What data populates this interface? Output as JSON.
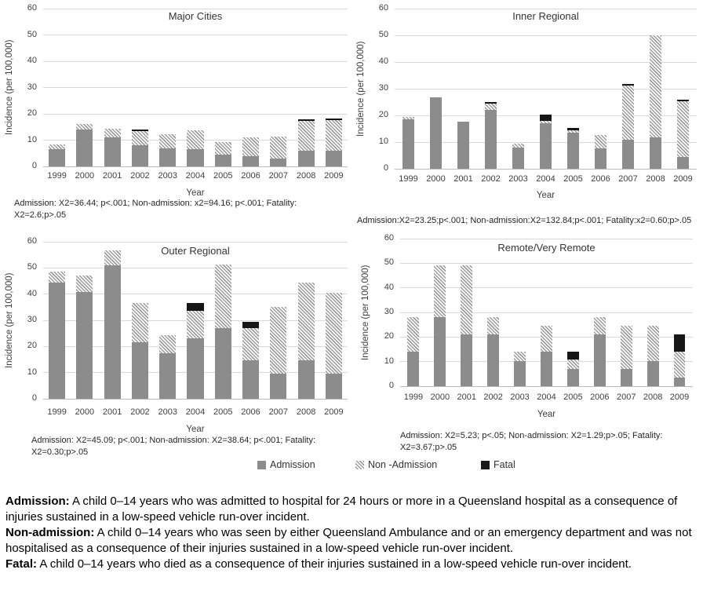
{
  "page": {
    "legend": [
      {
        "label": "Admission",
        "swatch": "solid-gray",
        "color": "#8c8c8c"
      },
      {
        "label": "Non -Admission",
        "swatch": "diagonal-hatch",
        "color": "#9c9c9c"
      },
      {
        "label": "Fatal",
        "swatch": "solid-black",
        "color": "#1a1a1a"
      }
    ],
    "definitions": [
      {
        "term": "Admission:",
        "text": " A child 0–14 years who was admitted to hospital for 24 hours or more in a Queensland hospital as a consequence of injuries sustained in a low-speed vehicle run-over incident."
      },
      {
        "term": "Non-admission:",
        "text": " A child 0–14 years who was seen by either Queensland Ambulance and or an emergency department and was not hospitalised as a consequence of their injuries sustained in a low-speed vehicle run-over incident."
      },
      {
        "term": "Fatal:",
        "text": " A child 0–14 years who died as a consequence of their injuries sustained in a low-speed vehicle run-over incident."
      }
    ]
  },
  "chart_data": [
    {
      "type": "bar",
      "stacked": true,
      "title": "Major Cities",
      "xlabel": "Year",
      "ylabel": "Incidence (per 100,000)",
      "ylim": [
        0,
        60
      ],
      "yticks": [
        0,
        10,
        20,
        30,
        40,
        50,
        60
      ],
      "grid": "horizontal",
      "legend_position": "shared-bottom",
      "categories": [
        "1999",
        "2000",
        "2001",
        "2002",
        "2003",
        "2004",
        "2005",
        "2006",
        "2007",
        "2008",
        "2009"
      ],
      "series": [
        {
          "name": "Admission",
          "values": [
            6.5,
            14,
            11,
            8,
            7,
            6.7,
            4.5,
            4,
            3,
            6,
            6
          ]
        },
        {
          "name": "Non-Admission",
          "values": [
            2,
            2,
            3.3,
            5.4,
            5.2,
            7,
            4.7,
            7,
            8.3,
            11.4,
            11.7
          ]
        },
        {
          "name": "Fatal",
          "values": [
            0,
            0,
            0,
            0.4,
            0,
            0,
            0,
            0,
            0,
            0.4,
            0.4
          ]
        }
      ],
      "stats_note": "Admission:  X2=36.44; p<.001; Non-admission: x2=94.16; p<.001; Fatality: X2=2.6;p>.05"
    },
    {
      "type": "bar",
      "stacked": true,
      "title": "Inner Regional",
      "xlabel": "Year",
      "ylabel": "Incidence (per 100,000)",
      "ylim": [
        0,
        60
      ],
      "yticks": [
        0,
        10,
        20,
        30,
        40,
        50,
        60
      ],
      "grid": "horizontal",
      "legend_position": "shared-bottom",
      "categories": [
        "1999",
        "2000",
        "2001",
        "2002",
        "2003",
        "2004",
        "2005",
        "2006",
        "2007",
        "2008",
        "2009"
      ],
      "series": [
        {
          "name": "Admission",
          "values": [
            18.5,
            26.8,
            17.6,
            22,
            7.8,
            17,
            13.5,
            7.7,
            11,
            11.8,
            4.3
          ]
        },
        {
          "name": "Non-Admission",
          "values": [
            0.8,
            0,
            0,
            2.3,
            1.5,
            0.8,
            0.9,
            5,
            20.2,
            38.2,
            20.9
          ]
        },
        {
          "name": "Fatal",
          "values": [
            0,
            0,
            0,
            0.7,
            0,
            2.4,
            0.8,
            0,
            0.6,
            0,
            0.8
          ]
        }
      ],
      "stats_note": "Admission:X2=23.25;p<.001; Non-admission:X2=132.84;p<.001; Fatality:x2=0.60;p>.05"
    },
    {
      "type": "bar",
      "stacked": true,
      "title": "Outer Regional",
      "xlabel": "Year",
      "ylabel": "Incidence (per 100,000)",
      "ylim": [
        0,
        60
      ],
      "yticks": [
        0,
        10,
        20,
        30,
        40,
        50,
        60
      ],
      "grid": "horizontal",
      "legend_position": "shared-bottom",
      "categories": [
        "1999",
        "2000",
        "2001",
        "2002",
        "2003",
        "2004",
        "2005",
        "2006",
        "2007",
        "2008",
        "2009"
      ],
      "series": [
        {
          "name": "Admission",
          "values": [
            44.5,
            40.7,
            51,
            21.7,
            17.5,
            23,
            27,
            14.8,
            9.5,
            14.8,
            9.5
          ]
        },
        {
          "name": "Non-Admission",
          "values": [
            4.2,
            6.5,
            5.7,
            14.8,
            6.9,
            10.5,
            24.3,
            12.2,
            25.7,
            29.7,
            31
          ]
        },
        {
          "name": "Fatal",
          "values": [
            0,
            0,
            0,
            0,
            0,
            3,
            0,
            2.5,
            0,
            0,
            0
          ]
        }
      ],
      "stats_note": "Admission:  X2=45.09; p<.001; Non-admission: X2=38.64; p<.001; Fatality: X2=0.30;p>.05"
    },
    {
      "type": "bar",
      "stacked": true,
      "title": "Remote/Very Remote",
      "xlabel": "Year",
      "ylabel": "Incidence (per 100,000)",
      "ylim": [
        0,
        60
      ],
      "yticks": [
        0,
        10,
        20,
        30,
        40,
        50,
        60
      ],
      "grid": "horizontal",
      "legend_position": "shared-bottom",
      "categories": [
        "1999",
        "2000",
        "2001",
        "2002",
        "2003",
        "2004",
        "2005",
        "2006",
        "2007",
        "2008",
        "2009"
      ],
      "series": [
        {
          "name": "Admission",
          "values": [
            14,
            28,
            21,
            21,
            10.3,
            14,
            7,
            21,
            7,
            10.3,
            3.5
          ]
        },
        {
          "name": "Non-Admission",
          "values": [
            14.2,
            21.3,
            28.3,
            7.2,
            3.7,
            10.5,
            3.8,
            7.2,
            17.5,
            14.2,
            10.5
          ]
        },
        {
          "name": "Fatal",
          "values": [
            0,
            0,
            0,
            0,
            0,
            0,
            3.2,
            0,
            0,
            0,
            7
          ]
        }
      ],
      "stats_note": "Admission: X2=5.23; p<.05; Non-admission: X2=1.29;p>.05; Fatality: X2=3.67;p>.05"
    }
  ]
}
